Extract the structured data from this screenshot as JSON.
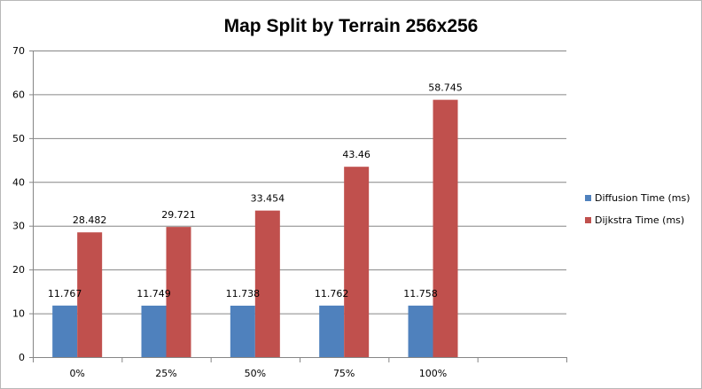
{
  "chart_data": {
    "type": "bar",
    "title": "Map Split by Terrain 256x256",
    "xlabel": "",
    "ylabel": "",
    "categories": [
      "0%",
      "25%",
      "50%",
      "75%",
      "100%",
      ""
    ],
    "series": [
      {
        "name": "Diffusion Time (ms)",
        "color": "#4f81bd",
        "values": [
          11.767,
          11.749,
          11.738,
          11.762,
          11.758,
          null
        ]
      },
      {
        "name": "Dijkstra Time (ms)",
        "color": "#c0504d",
        "values": [
          28.482,
          29.721,
          33.454,
          43.46,
          58.745,
          null
        ]
      }
    ],
    "ylim": [
      0,
      70
    ],
    "yticks": [
      0,
      10,
      20,
      30,
      40,
      50,
      60,
      70
    ],
    "grid": true,
    "legend": "right"
  }
}
